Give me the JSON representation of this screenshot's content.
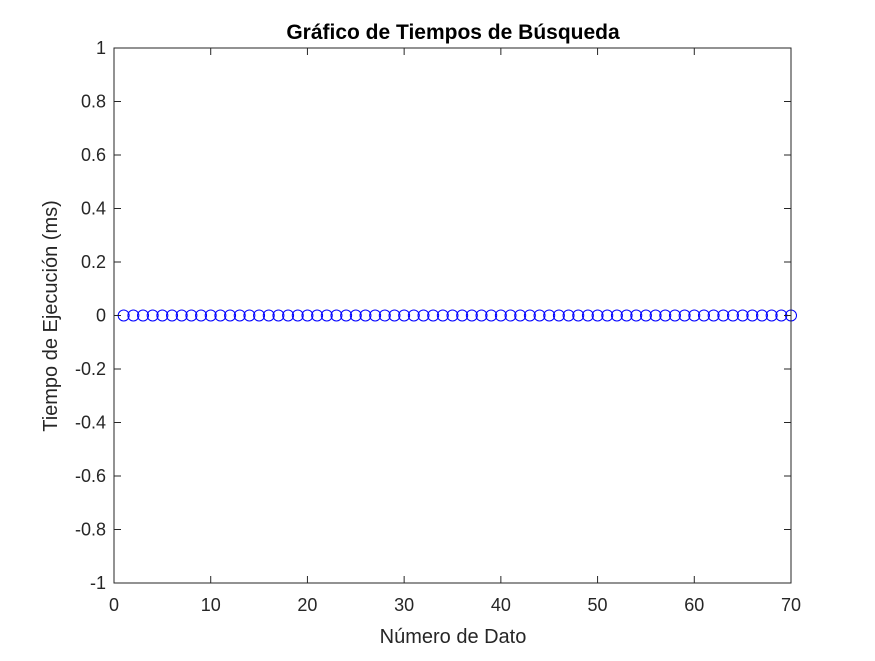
{
  "chart_data": {
    "type": "scatter",
    "title": "Gráfico de Tiempos de Búsqueda",
    "xlabel": "Número de Dato",
    "ylabel": "Tiempo de Ejecución (ms)",
    "xlim": [
      0,
      70
    ],
    "ylim": [
      -1,
      1
    ],
    "xticks": [
      0,
      10,
      20,
      30,
      40,
      50,
      60,
      70
    ],
    "xtick_labels": [
      "0",
      "10",
      "20",
      "30",
      "40",
      "50",
      "60",
      "70"
    ],
    "yticks": [
      -1,
      -0.8,
      -0.6,
      -0.4,
      -0.2,
      0,
      0.2,
      0.4,
      0.6,
      0.8,
      1
    ],
    "ytick_labels": [
      "-1",
      "-0.8",
      "-0.6",
      "-0.4",
      "-0.2",
      "0",
      "0.2",
      "0.4",
      "0.6",
      "0.8",
      "1"
    ],
    "grid": false,
    "marker": "circle-open",
    "marker_color": "#0000ff",
    "series": [
      {
        "x": [
          1,
          2,
          3,
          4,
          5,
          6,
          7,
          8,
          9,
          10,
          11,
          12,
          13,
          14,
          15,
          16,
          17,
          18,
          19,
          20,
          21,
          22,
          23,
          24,
          25,
          26,
          27,
          28,
          29,
          30,
          31,
          32,
          33,
          34,
          35,
          36,
          37,
          38,
          39,
          40,
          41,
          42,
          43,
          44,
          45,
          46,
          47,
          48,
          49,
          50,
          51,
          52,
          53,
          54,
          55,
          56,
          57,
          58,
          59,
          60,
          61,
          62,
          63,
          64,
          65,
          66,
          67,
          68,
          69,
          70
        ],
        "y": [
          0,
          0,
          0,
          0,
          0,
          0,
          0,
          0,
          0,
          0,
          0,
          0,
          0,
          0,
          0,
          0,
          0,
          0,
          0,
          0,
          0,
          0,
          0,
          0,
          0,
          0,
          0,
          0,
          0,
          0,
          0,
          0,
          0,
          0,
          0,
          0,
          0,
          0,
          0,
          0,
          0,
          0,
          0,
          0,
          0,
          0,
          0,
          0,
          0,
          0,
          0,
          0,
          0,
          0,
          0,
          0,
          0,
          0,
          0,
          0,
          0,
          0,
          0,
          0,
          0,
          0,
          0,
          0,
          0,
          0
        ]
      }
    ]
  }
}
